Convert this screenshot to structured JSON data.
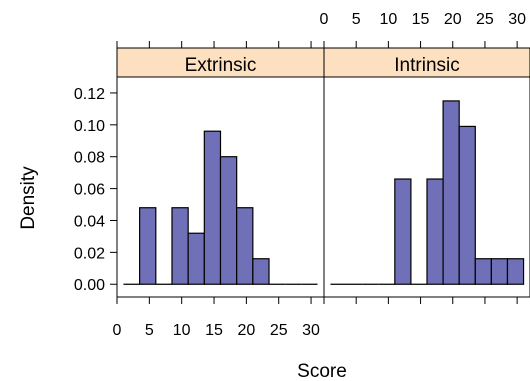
{
  "chart_data": {
    "type": "bar",
    "xlabel": "Score",
    "ylabel": "Density",
    "xlim": [
      0,
      32
    ],
    "ylim": [
      -0.008,
      0.13
    ],
    "x_ticks": [
      "0",
      "5",
      "10",
      "15",
      "20",
      "25",
      "30"
    ],
    "y_ticks": [
      "0.00",
      "0.02",
      "0.04",
      "0.06",
      "0.08",
      "0.10",
      "0.12"
    ],
    "bin_edges": [
      1,
      3.5,
      6,
      8.5,
      11,
      13.5,
      16,
      18.5,
      21,
      23.5,
      26,
      28.5,
      31
    ],
    "bar_color": "#7070b8",
    "strip_color": "#fde0c0",
    "panels": [
      {
        "name": "Extrinsic",
        "values": [
          0,
          0.048,
          0,
          0.048,
          0.032,
          0.096,
          0.08,
          0.048,
          0.016,
          0,
          0,
          0
        ]
      },
      {
        "name": "Intrinsic",
        "values": [
          0,
          0,
          0,
          0,
          0.066,
          0,
          0.066,
          0.115,
          0.099,
          0.016,
          0.016,
          0.016
        ]
      }
    ]
  }
}
